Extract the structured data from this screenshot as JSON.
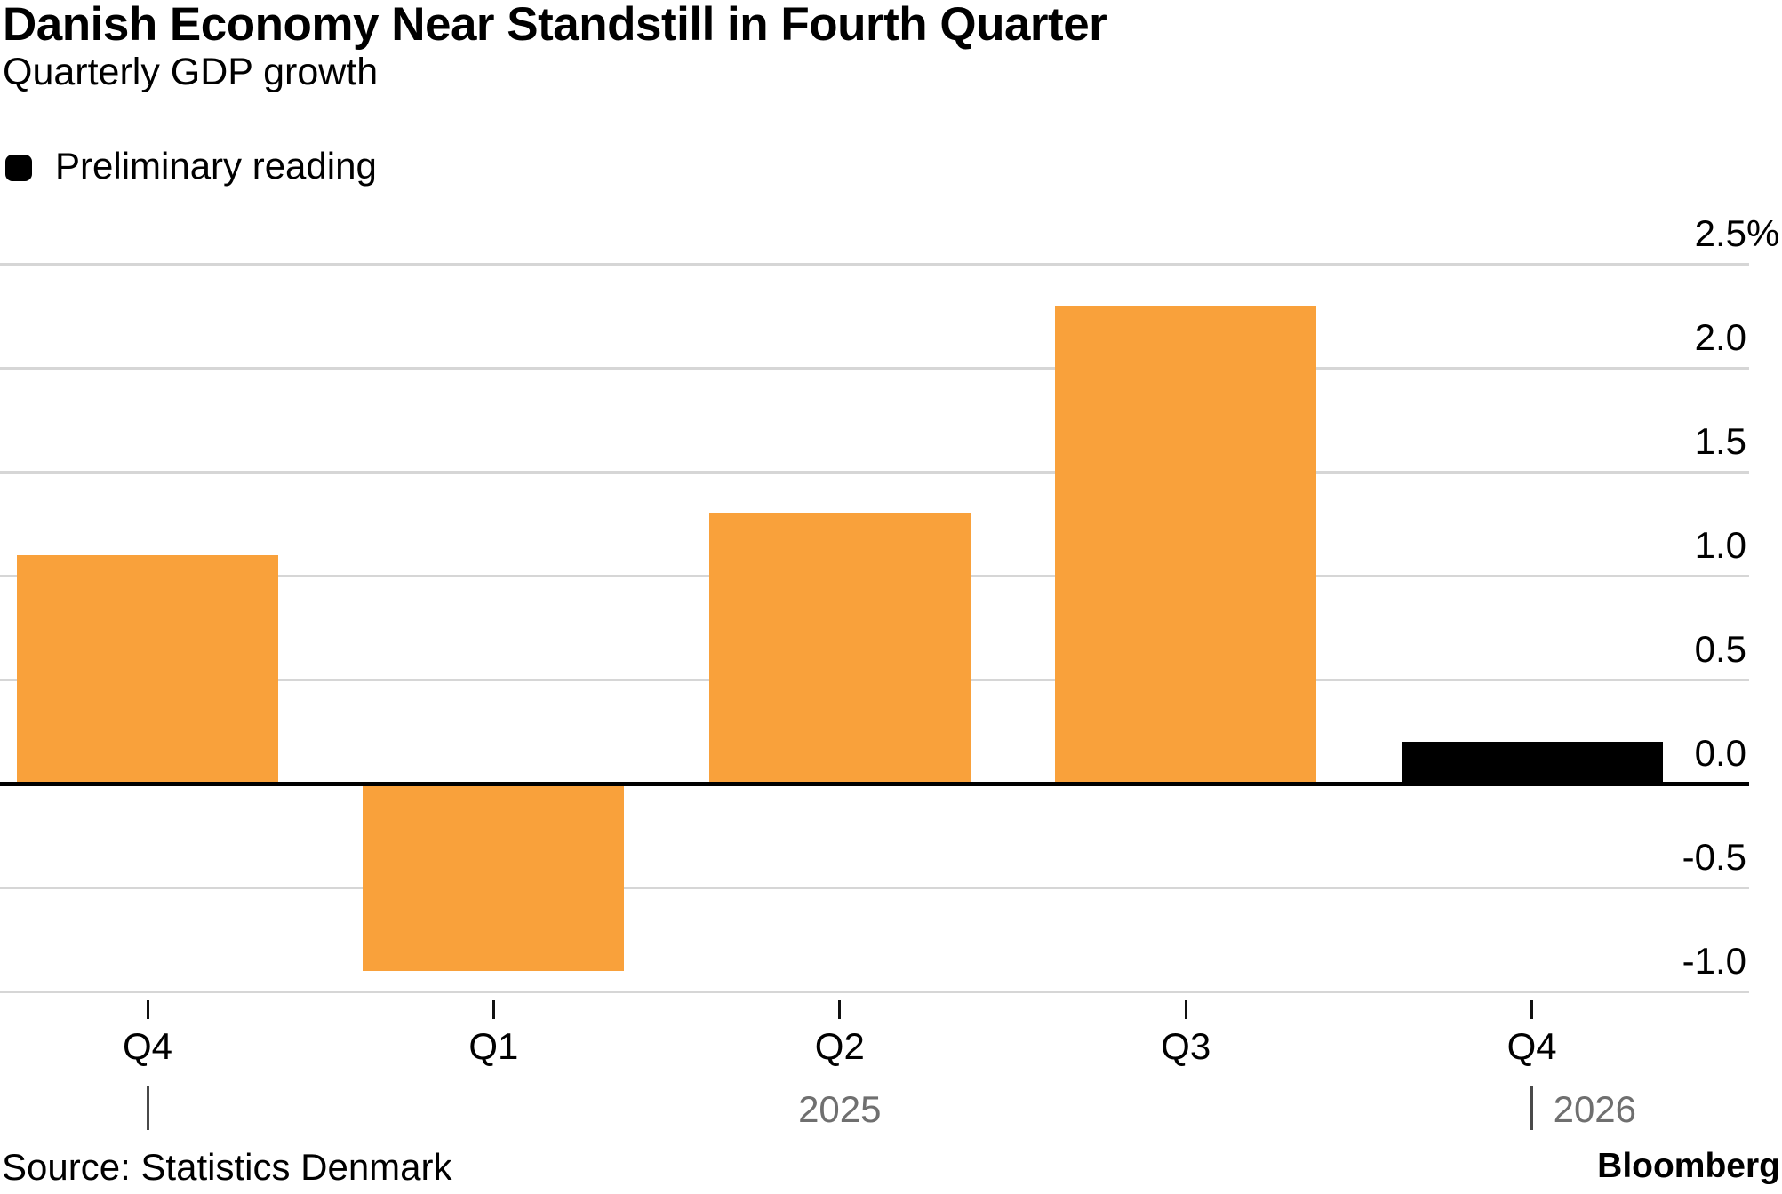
{
  "header": {
    "title": "Danish Economy Near Standstill in Fourth Quarter",
    "subtitle": "Quarterly GDP growth"
  },
  "legend": {
    "items": [
      {
        "label": "Preliminary reading",
        "color": "#000000"
      }
    ]
  },
  "chart_data": {
    "type": "bar",
    "title": "Danish Economy Near Standstill in Fourth Quarter",
    "subtitle": "Quarterly GDP growth",
    "xlabel": "",
    "ylabel": "",
    "y_unit": "%",
    "ylim": [
      -1.0,
      2.5
    ],
    "grid": true,
    "legend_position": "top-left",
    "y_ticks": [
      {
        "value": 2.5,
        "label": "2.5",
        "suffix": "%"
      },
      {
        "value": 2.0,
        "label": "2.0",
        "suffix": ""
      },
      {
        "value": 1.5,
        "label": "1.5",
        "suffix": ""
      },
      {
        "value": 1.0,
        "label": "1.0",
        "suffix": ""
      },
      {
        "value": 0.5,
        "label": "0.5",
        "suffix": ""
      },
      {
        "value": 0.0,
        "label": "0.0",
        "suffix": ""
      },
      {
        "value": -0.5,
        "label": "-0.5",
        "suffix": ""
      },
      {
        "value": -1.0,
        "label": "-1.0",
        "suffix": ""
      }
    ],
    "categories": [
      "Q4",
      "Q1",
      "Q2",
      "Q3",
      "Q4"
    ],
    "bars": [
      {
        "category": "Q4",
        "value": 1.1,
        "preliminary": false
      },
      {
        "category": "Q1",
        "value": -0.9,
        "preliminary": false
      },
      {
        "category": "Q2",
        "value": 1.3,
        "preliminary": false
      },
      {
        "category": "Q3",
        "value": 2.3,
        "preliminary": false
      },
      {
        "category": "Q4",
        "value": 0.2,
        "preliminary": true
      }
    ],
    "x_year_markers": [
      {
        "bar_index": 0,
        "divider": true,
        "label": "",
        "placement": "divider_only"
      },
      {
        "bar_index": 2,
        "divider": false,
        "label": "2025",
        "placement": "centered"
      },
      {
        "bar_index": 4,
        "divider": true,
        "label": "2026",
        "placement": "right_of_divider"
      }
    ],
    "colors": {
      "bar": "#F9A13B",
      "preliminary_bar": "#000000",
      "grid": "#D6D6D6",
      "zero_line": "#000000",
      "axis_label": "#000000",
      "year_text": "#6F6F6F",
      "divider": "#4A4A4A"
    }
  },
  "footer": {
    "source": "Source: Statistics Denmark",
    "brand": "Bloomberg"
  }
}
